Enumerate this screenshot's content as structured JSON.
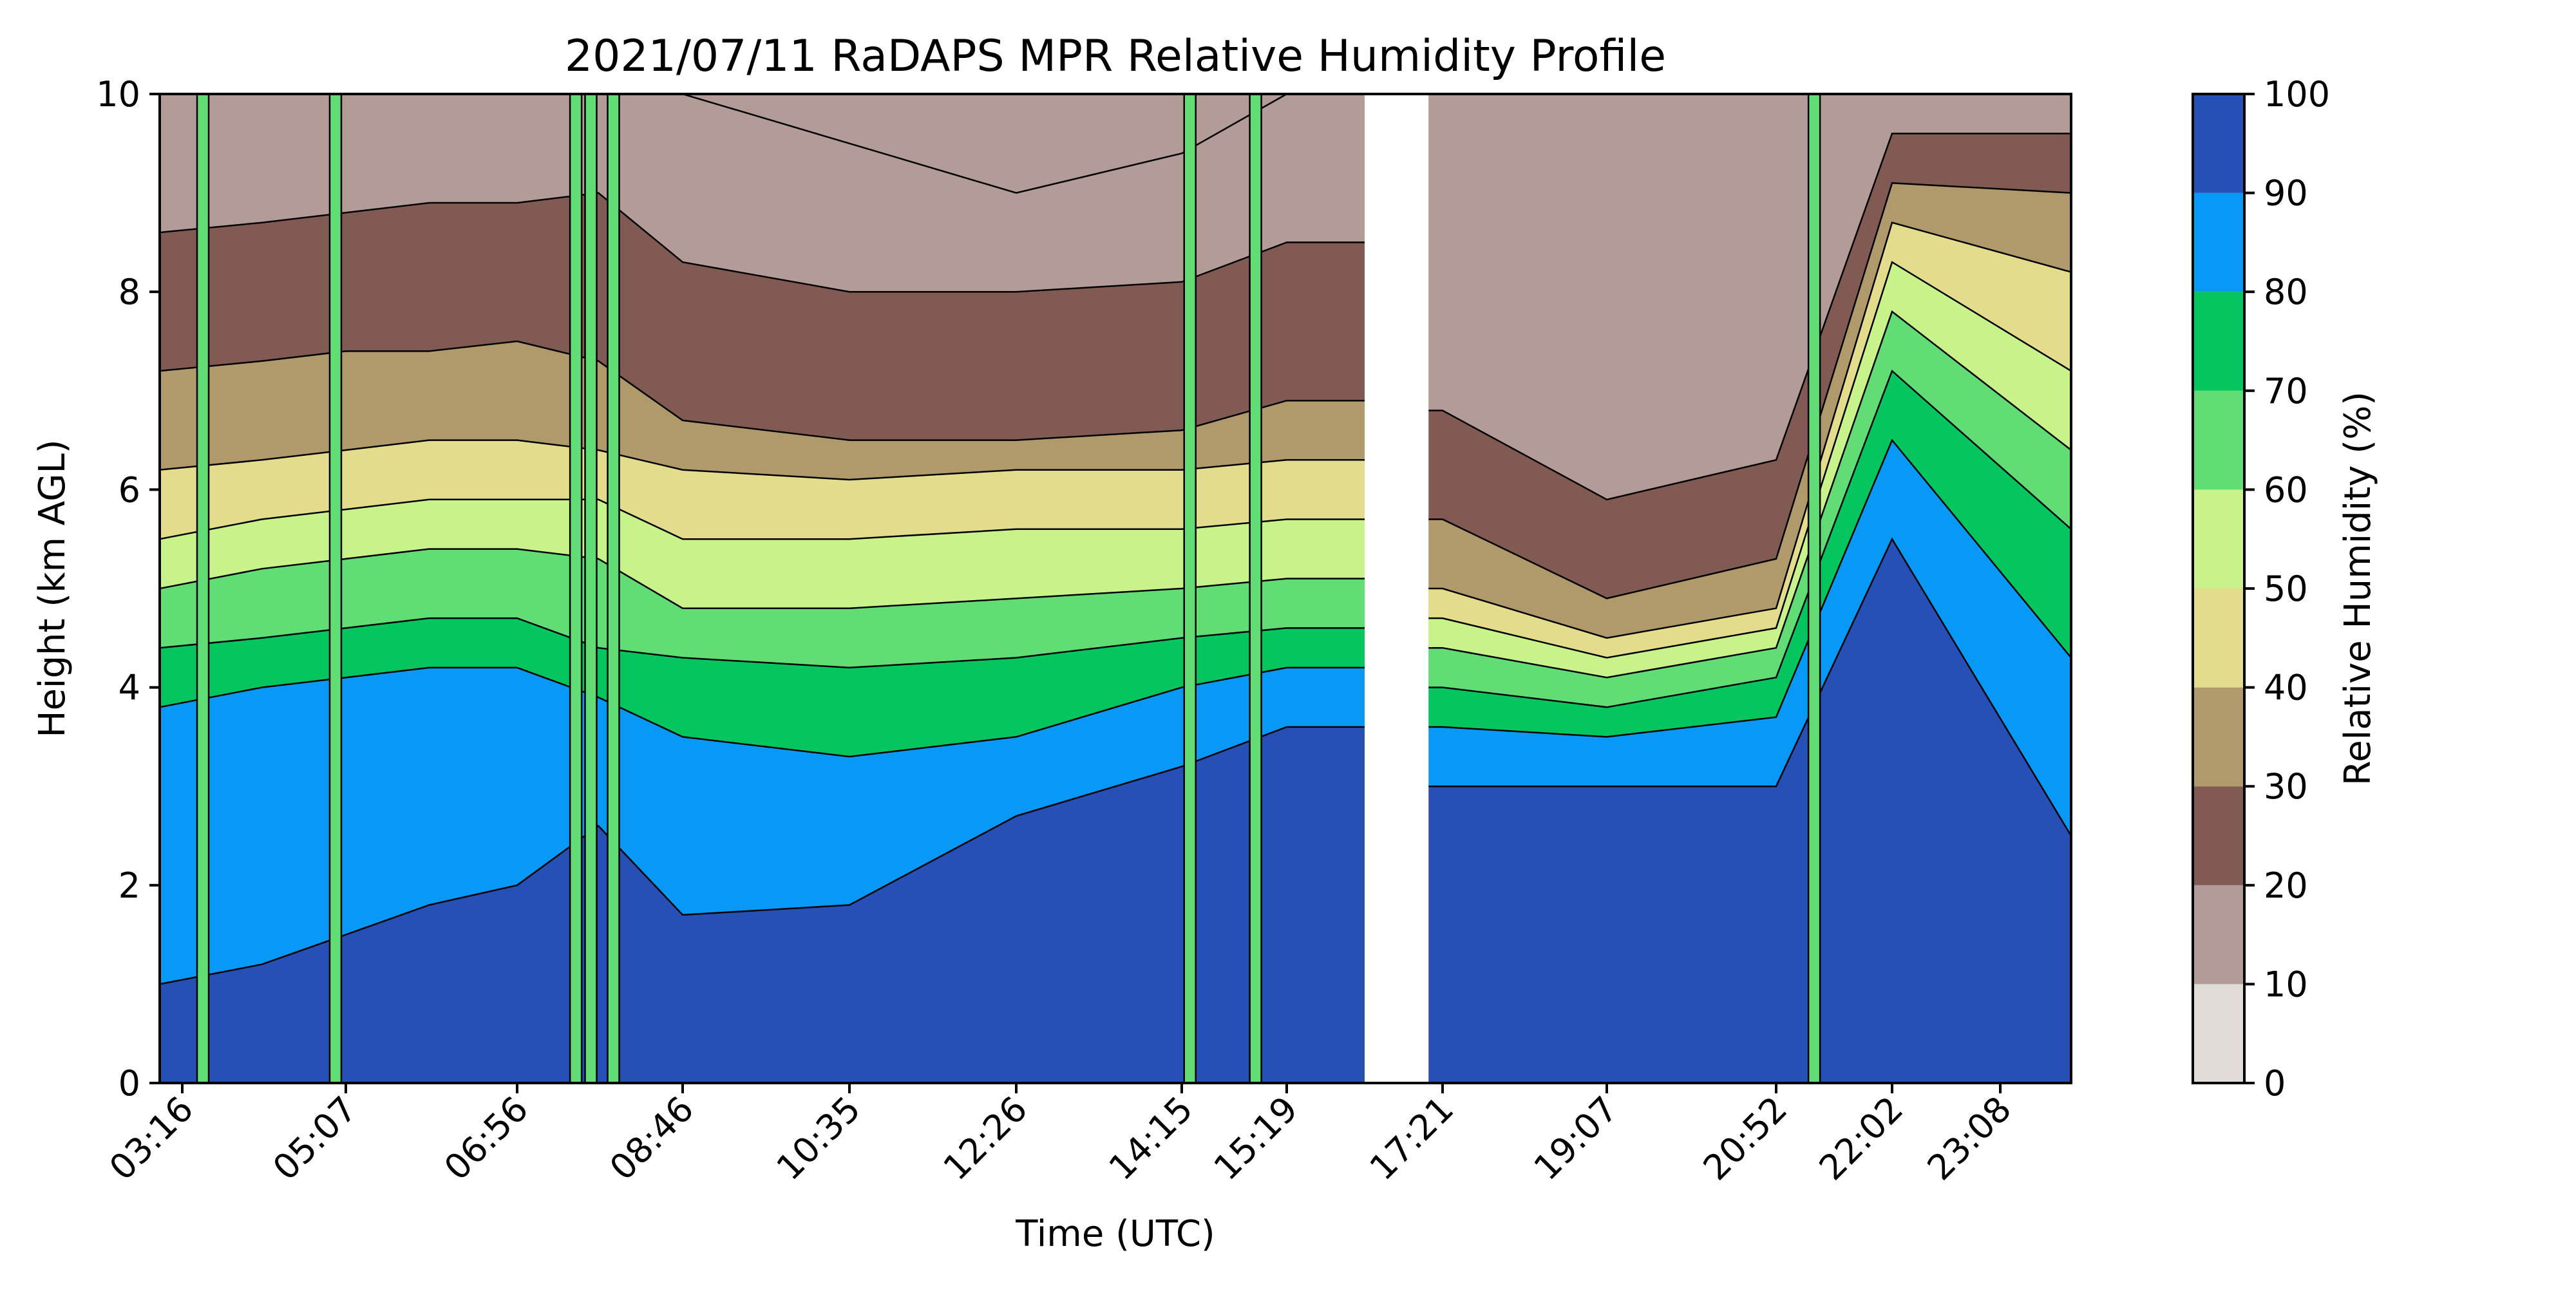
{
  "chart_data": {
    "type": "heatmap",
    "title": "2021/07/11 RaDAPS MPR Relative Humidity Profile",
    "xlabel": "Time (UTC)",
    "ylabel": "Height (km AGL)",
    "ylim": [
      0,
      10
    ],
    "y_ticks": [
      "0",
      "2",
      "4",
      "6",
      "8",
      "10"
    ],
    "x_ticks": [
      "03:16",
      "05:07",
      "06:56",
      "08:46",
      "10:35",
      "12:26",
      "14:15",
      "15:19",
      "17:21",
      "19:07",
      "20:52",
      "22:02",
      "23:08"
    ],
    "colorbar": {
      "label": "Relative Humidity (%)",
      "ticks": [
        "0",
        "10",
        "20",
        "30",
        "40",
        "50",
        "60",
        "70",
        "80",
        "90",
        "100"
      ],
      "levels": [
        {
          "range": [
            0,
            10
          ],
          "color": "#e1dcd8"
        },
        {
          "range": [
            10,
            20
          ],
          "color": "#b39c97"
        },
        {
          "range": [
            20,
            30
          ],
          "color": "#805a53"
        },
        {
          "range": [
            30,
            40
          ],
          "color": "#b09a6b"
        },
        {
          "range": [
            40,
            50
          ],
          "color": "#e2dc8c"
        },
        {
          "range": [
            50,
            60
          ],
          "color": "#c8f28a"
        },
        {
          "range": [
            60,
            70
          ],
          "color": "#62dd76"
        },
        {
          "range": [
            70,
            80
          ],
          "color": "#05c55f"
        },
        {
          "range": [
            80,
            90
          ],
          "color": "#0899f7"
        },
        {
          "range": [
            90,
            100
          ],
          "color": "#2650b6"
        }
      ]
    },
    "profiles": [
      {
        "time": "03:16",
        "levels_km": [
          1.0,
          3.8,
          4.4,
          5.0,
          5.5,
          6.2,
          7.2,
          8.6,
          10
        ]
      },
      {
        "time": "04:10",
        "levels_km": [
          1.2,
          4.0,
          4.5,
          5.2,
          5.7,
          6.3,
          7.3,
          8.7,
          10
        ]
      },
      {
        "time": "05:07",
        "levels_km": [
          1.5,
          4.1,
          4.6,
          5.3,
          5.8,
          6.4,
          7.4,
          8.8,
          10
        ]
      },
      {
        "time": "06:00",
        "levels_km": [
          1.8,
          4.2,
          4.7,
          5.4,
          5.9,
          6.5,
          7.4,
          8.9,
          10
        ]
      },
      {
        "time": "06:56",
        "levels_km": [
          2.0,
          4.2,
          4.7,
          5.4,
          5.9,
          6.5,
          7.5,
          8.9,
          10
        ]
      },
      {
        "time": "07:50",
        "levels_km": [
          2.6,
          3.9,
          4.4,
          5.3,
          5.9,
          6.4,
          7.3,
          9.0,
          10
        ]
      },
      {
        "time": "08:46",
        "levels_km": [
          1.7,
          3.5,
          4.3,
          4.8,
          5.5,
          6.2,
          6.7,
          8.3,
          10
        ]
      },
      {
        "time": "10:35",
        "levels_km": [
          1.8,
          3.3,
          4.2,
          4.8,
          5.5,
          6.1,
          6.5,
          8.0,
          9.5
        ]
      },
      {
        "time": "12:26",
        "levels_km": [
          2.7,
          3.5,
          4.3,
          4.9,
          5.6,
          6.2,
          6.5,
          8.0,
          9.0
        ]
      },
      {
        "time": "14:15",
        "levels_km": [
          3.2,
          4.0,
          4.5,
          5.0,
          5.6,
          6.2,
          6.6,
          8.1,
          9.4
        ]
      },
      {
        "time": "15:19",
        "levels_km": [
          3.6,
          4.2,
          4.6,
          5.1,
          5.7,
          6.3,
          6.9,
          8.5,
          10
        ]
      },
      {
        "time": "17:21",
        "levels_km": [
          3.0,
          3.6,
          4.0,
          4.4,
          4.7,
          5.0,
          5.7,
          6.8,
          10
        ]
      },
      {
        "time": "19:07",
        "levels_km": [
          3.0,
          3.5,
          3.8,
          4.1,
          4.3,
          4.5,
          4.9,
          5.9,
          10
        ]
      },
      {
        "time": "20:52",
        "levels_km": [
          3.0,
          3.7,
          4.1,
          4.4,
          4.6,
          4.8,
          5.3,
          6.3,
          10
        ]
      },
      {
        "time": "22:02",
        "levels_km": [
          5.5,
          6.5,
          7.2,
          7.8,
          8.3,
          8.7,
          9.1,
          9.6,
          10
        ]
      },
      {
        "time": "23:08",
        "levels_km": [
          2.5,
          4.3,
          5.6,
          6.4,
          7.2,
          8.2,
          9.0,
          9.6,
          10
        ]
      }
    ],
    "profile_levels_note": "boundaries of the 90,80,70,60,50,40,30,20,10 % RH contours (km), bottom to top",
    "missing_intervals": [
      [
        "16:20",
        "17:10"
      ]
    ],
    "moist_columns": [
      "03:30",
      "05:00",
      "07:35",
      "07:45",
      "08:00",
      "14:20",
      "15:00",
      "21:15"
    ],
    "grid": false
  }
}
